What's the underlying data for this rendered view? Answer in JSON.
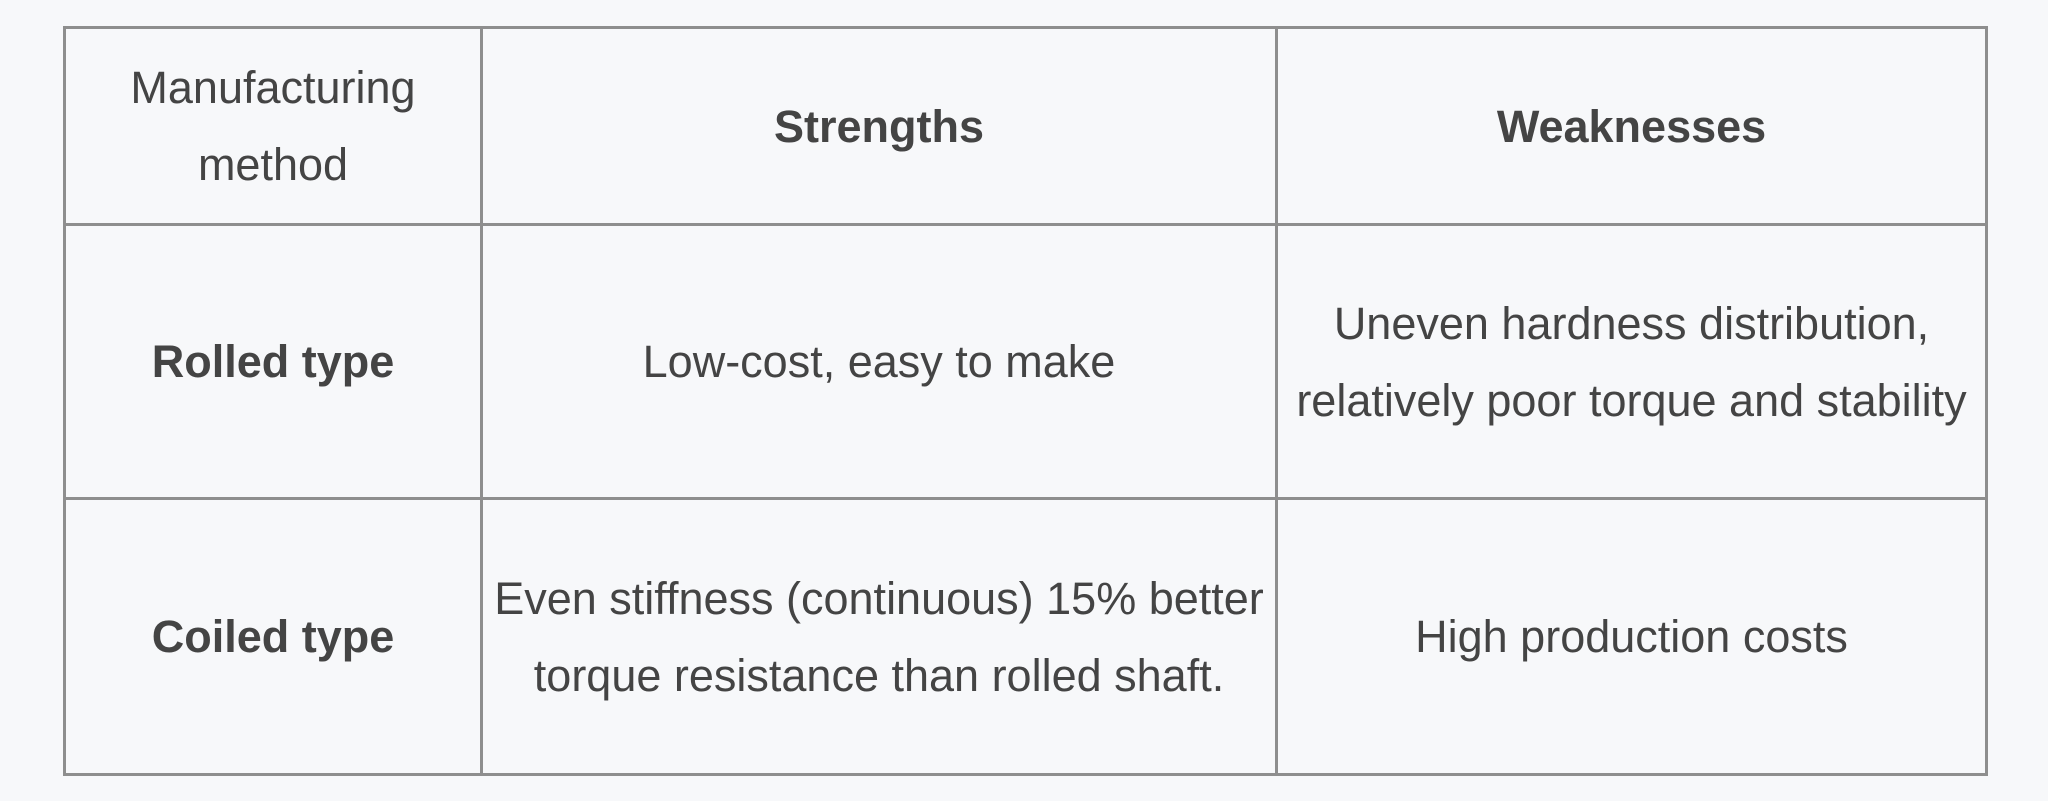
{
  "table": {
    "headers": {
      "method": "Manufacturing method",
      "strengths": "Strengths",
      "weaknesses": "Weaknesses"
    },
    "rows": [
      {
        "method": "Rolled type",
        "strengths": "Low-cost, easy to make",
        "weaknesses": "Uneven hardness distribution, relatively poor torque and stability"
      },
      {
        "method": "Coiled type",
        "strengths": "Even stiffness (continuous) 15% better torque resistance than rolled shaft.",
        "weaknesses": "High production costs"
      }
    ]
  },
  "colors": {
    "background": "#f7f8fa",
    "border": "#8e8e8e",
    "text": "#444444"
  }
}
